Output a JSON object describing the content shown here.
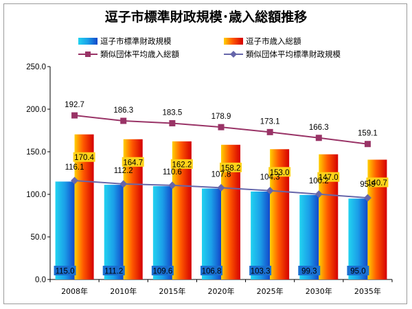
{
  "chart_data": {
    "type": "bar",
    "title": "逗子市標準財政規模･歳入総額推移",
    "categories": [
      "2008年",
      "2010年",
      "2015年",
      "2020年",
      "2025年",
      "2030年",
      "2035年"
    ],
    "ylim": [
      0,
      250
    ],
    "yticks": [
      "0.0",
      "50.0",
      "100.0",
      "150.0",
      "200.0",
      "250.0"
    ],
    "grid": false,
    "legend_position": "top",
    "series": [
      {
        "name": "逗子市標準財政規模",
        "kind": "bar",
        "color": "#1e8fe6",
        "values": [
          115.0,
          111.2,
          109.6,
          106.8,
          103.3,
          99.3,
          95.0
        ],
        "labels": [
          "115.0",
          "111.2",
          "109.6",
          "106.8",
          "103.3",
          "99.3",
          "95.0"
        ]
      },
      {
        "name": "逗子市歳入総額",
        "kind": "bar",
        "color": "#ff2a00",
        "values": [
          170.4,
          164.7,
          162.2,
          158.2,
          153.0,
          147.0,
          140.7
        ],
        "labels": [
          "170.4",
          "164.7",
          "162.2",
          "158.2",
          "153.0",
          "147.0",
          "140.7"
        ]
      },
      {
        "name": "類似団体平均歳入総額",
        "kind": "line",
        "marker": "square",
        "color": "#993366",
        "values": [
          192.7,
          186.3,
          183.5,
          178.9,
          173.1,
          166.3,
          159.1
        ],
        "labels": [
          "192.7",
          "186.3",
          "183.5",
          "178.9",
          "173.1",
          "166.3",
          "159.1"
        ]
      },
      {
        "name": "類似団体平均標準財政規模",
        "kind": "line",
        "marker": "diamond",
        "color": "#6666aa",
        "values": [
          116.1,
          112.2,
          110.6,
          107.8,
          104.3,
          100.2,
          95.9
        ],
        "labels": [
          "116.1",
          "112.2",
          "110.6",
          "107.8",
          "104.3",
          "100.2",
          "95.9"
        ]
      }
    ]
  }
}
